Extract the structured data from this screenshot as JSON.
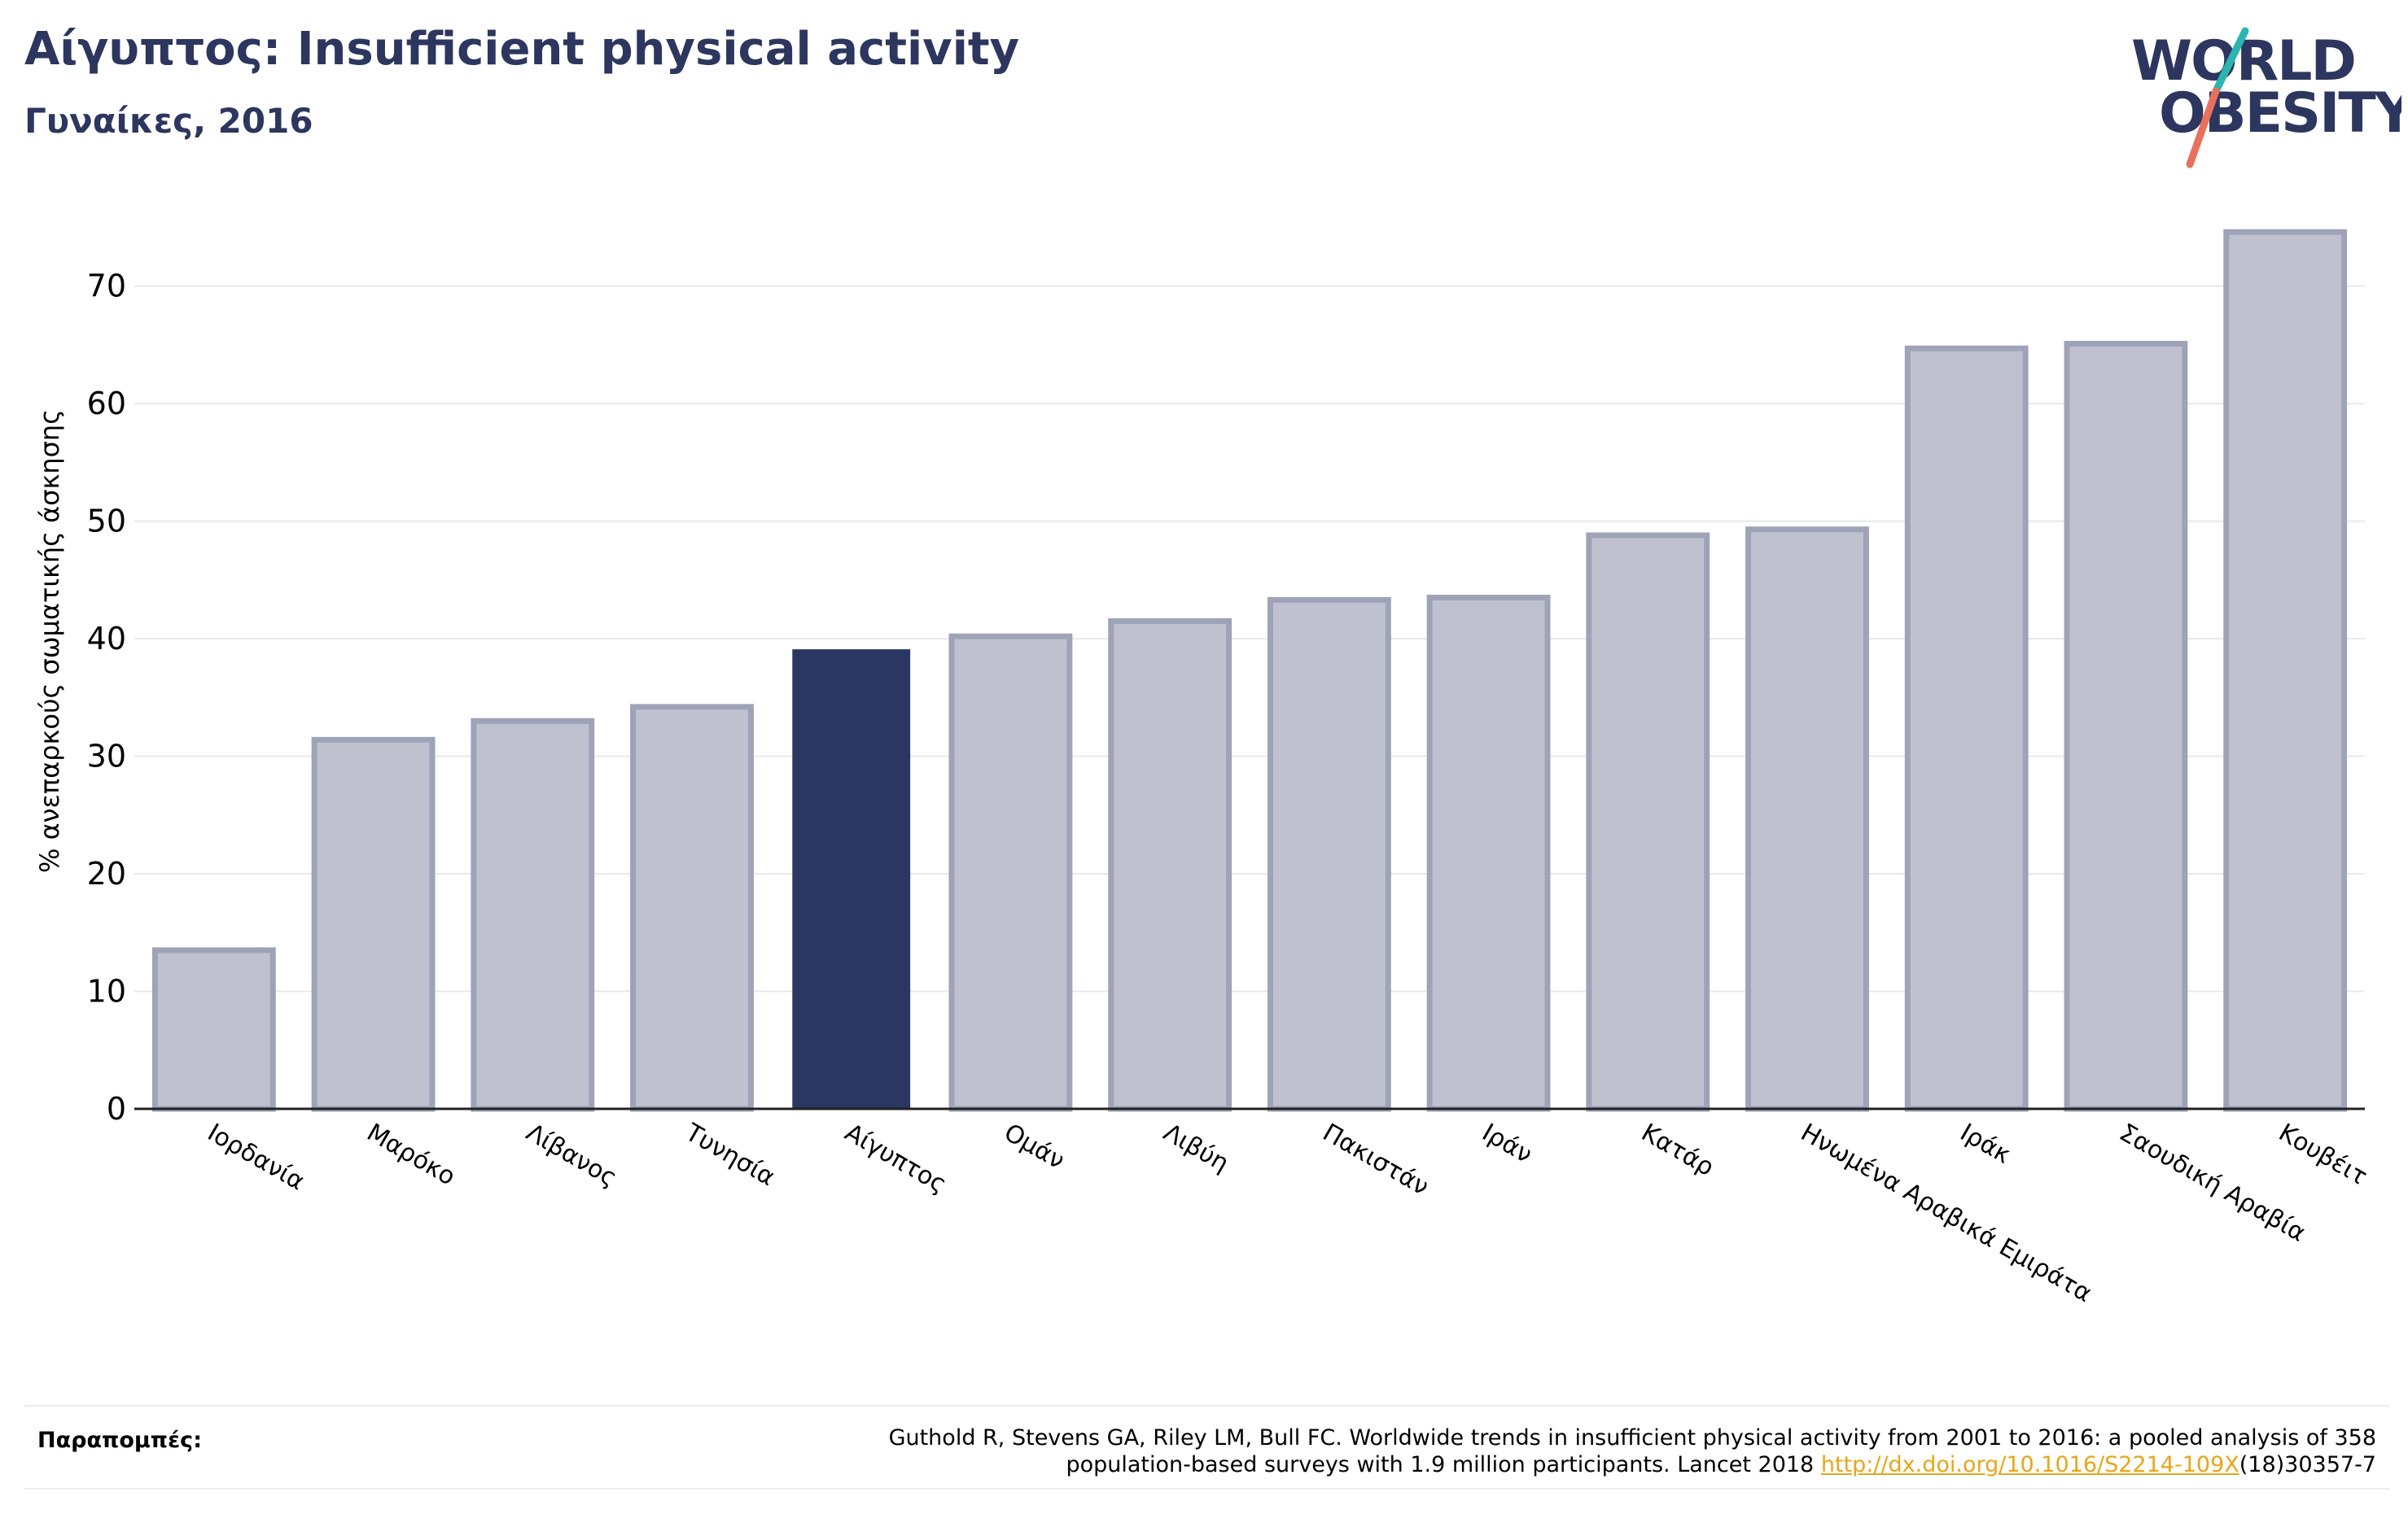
{
  "header": {
    "title": "Αίγυπτος: Insufficient physical activity",
    "subtitle": "Γυναίκες, 2016"
  },
  "logo": {
    "line1": "WORLD",
    "line2": "OBESITY",
    "color": "#2c365e",
    "accent_top": "#2bb5b0",
    "accent_bottom": "#e8715e"
  },
  "chart_data": {
    "type": "bar",
    "title": "Αίγυπτος: Insufficient physical activity",
    "subtitle": "Γυναίκες, 2016",
    "xlabel": "",
    "ylabel": "% ανεπαρκούς σωματικής άσκησης",
    "ylim": [
      0,
      76
    ],
    "yticks": [
      0,
      10,
      20,
      30,
      40,
      50,
      60,
      70
    ],
    "grid": "horizontal",
    "highlight": "Αίγυπτος",
    "colors": {
      "highlight": "#2b3662",
      "bar_fill": "#bfc2ce",
      "bar_edge": "#9ea3b8",
      "grid": "#e8e8ee",
      "axis": "#222222"
    },
    "categories": [
      "Ιορδανία",
      "Μαρόκο",
      "Λίβανος",
      "Τυνησία",
      "Αίγυπτος",
      "Ομάν",
      "Λιβύη",
      "Πακιστάν",
      "Ιράν",
      "Κατάρ",
      "Ηνωμένα Αραβικά Εμιράτα",
      "Ιράκ",
      "Σαουδική Αραβία",
      "Κουβέιτ"
    ],
    "values": [
      13.5,
      31.4,
      33.0,
      34.2,
      39.1,
      40.2,
      41.5,
      43.3,
      43.5,
      48.8,
      49.3,
      64.7,
      65.1,
      74.6
    ]
  },
  "references": {
    "label": "Παραπομπές:",
    "line1": "Guthold R, Stevens GA, Riley LM, Bull FC. Worldwide trends in insufficient physical activity from 2001 to 2016: a pooled analysis of 358",
    "line2_before": "population-based surveys with 1.9 million participants. Lancet 2018 ",
    "link": "http://dx.doi.org/10.1016/S2214-109X",
    "line2_after": "(18)30357-7"
  }
}
